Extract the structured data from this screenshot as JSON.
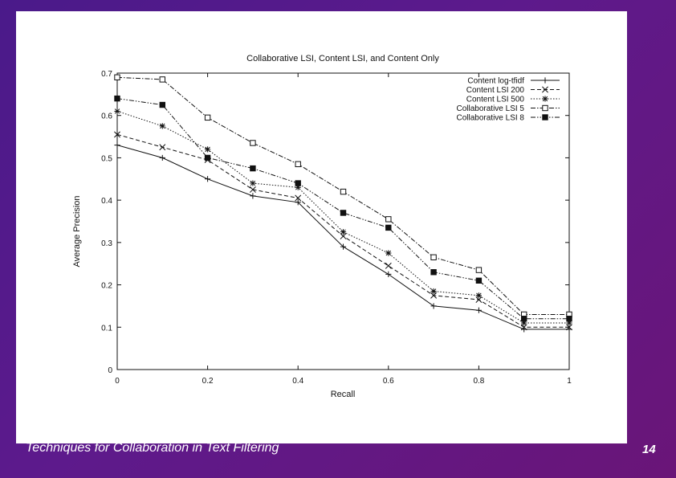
{
  "footer": {
    "caption": "Techniques for Collaboration in Text Filtering",
    "page_number": "14"
  },
  "colors": {
    "background_start": "#4a1a8a",
    "background_end": "#6a1578",
    "panel": "#ffffff",
    "ink": "#111111"
  },
  "chart_data": {
    "type": "line",
    "title": "Collaborative LSI, Content LSI, and Content Only",
    "xlabel": "Recall",
    "ylabel": "Average Precision",
    "xlim": [
      0,
      1
    ],
    "ylim": [
      0,
      0.7
    ],
    "x_ticks": [
      0,
      0.2,
      0.4,
      0.6,
      0.8,
      1
    ],
    "x_tick_labels": [
      "0",
      "0.2",
      "0.4",
      "0.6",
      "0.8",
      "1"
    ],
    "y_ticks": [
      0,
      0.1,
      0.2,
      0.3,
      0.4,
      0.5,
      0.6,
      0.7
    ],
    "y_tick_labels": [
      "0",
      "0.1",
      "0.2",
      "0.3",
      "0.4",
      "0.5",
      "0.6",
      "0.7"
    ],
    "grid": false,
    "legend_position": "top-right",
    "x": [
      0,
      0.1,
      0.2,
      0.3,
      0.4,
      0.5,
      0.6,
      0.7,
      0.8,
      0.9,
      1.0
    ],
    "series": [
      {
        "name": "Content log-tfidf",
        "marker": "plus",
        "dash": "solid",
        "values": [
          0.53,
          0.5,
          0.45,
          0.41,
          0.395,
          0.29,
          0.225,
          0.15,
          0.14,
          0.095,
          0.095
        ]
      },
      {
        "name": "Content LSI 200",
        "marker": "x",
        "dash": "dashed",
        "values": [
          0.555,
          0.525,
          0.495,
          0.425,
          0.405,
          0.315,
          0.245,
          0.175,
          0.165,
          0.1,
          0.1
        ]
      },
      {
        "name": "Content LSI 500",
        "marker": "asterisk",
        "dash": "dotted",
        "values": [
          0.61,
          0.575,
          0.52,
          0.44,
          0.43,
          0.325,
          0.275,
          0.185,
          0.175,
          0.11,
          0.11
        ]
      },
      {
        "name": "Collaborative LSI 5",
        "marker": "square-open",
        "dash": "dashdot",
        "values": [
          0.69,
          0.685,
          0.595,
          0.535,
          0.485,
          0.42,
          0.355,
          0.265,
          0.235,
          0.13,
          0.13
        ]
      },
      {
        "name": "Collaborative LSI 8",
        "marker": "square-filled",
        "dash": "dashdotdot",
        "values": [
          0.64,
          0.625,
          0.5,
          0.475,
          0.44,
          0.37,
          0.335,
          0.23,
          0.21,
          0.12,
          0.12
        ]
      }
    ]
  }
}
